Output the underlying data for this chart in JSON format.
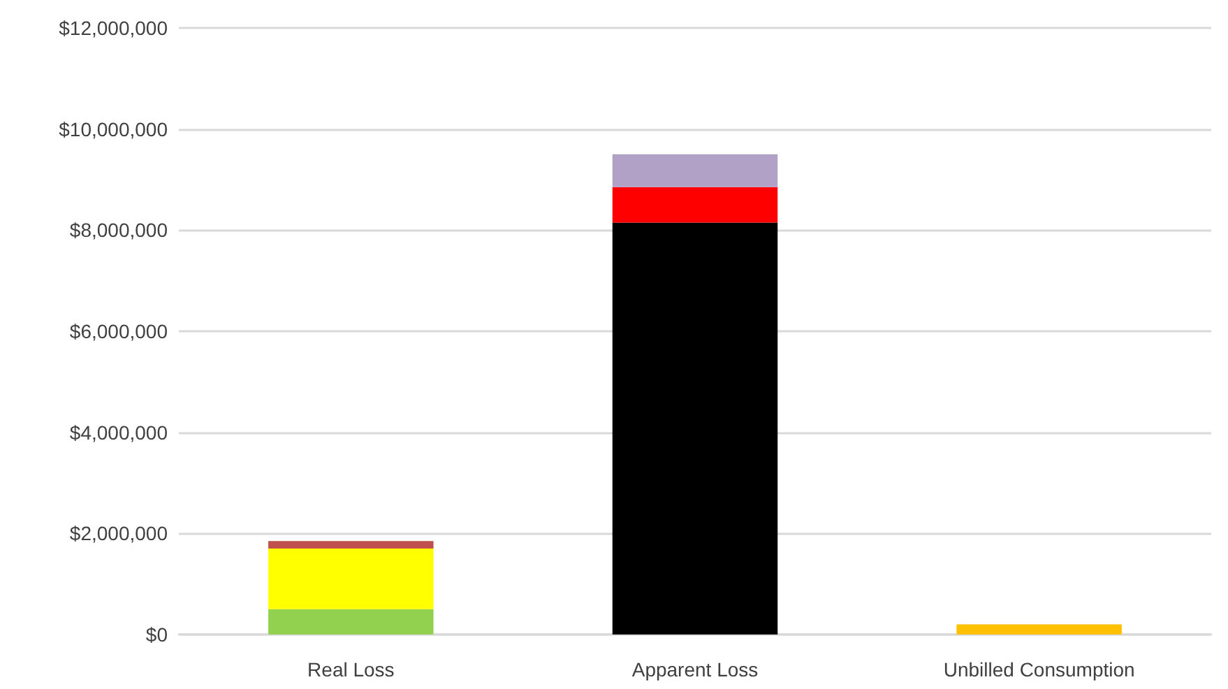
{
  "chart_data": {
    "type": "bar",
    "stacked": true,
    "categories": [
      "Real Loss",
      "Apparent Loss",
      "Unbilled Consumption"
    ],
    "series": [
      {
        "color": "#92d050",
        "values": [
          500000,
          null,
          null
        ]
      },
      {
        "color": "#ffff00",
        "values": [
          1200000,
          null,
          null
        ]
      },
      {
        "color": "#c0504d",
        "values": [
          150000,
          null,
          null
        ]
      },
      {
        "color": "#000000",
        "values": [
          null,
          8150000,
          null
        ]
      },
      {
        "color": "#ff0000",
        "values": [
          null,
          700000,
          null
        ]
      },
      {
        "color": "#b2a1c7",
        "values": [
          null,
          650000,
          null
        ]
      },
      {
        "color": "#ffc000",
        "values": [
          null,
          null,
          200000
        ]
      }
    ],
    "ylim": [
      0,
      12000000
    ],
    "yticks": [
      {
        "value": 0,
        "label": "$0"
      },
      {
        "value": 2000000,
        "label": "$2,000,000"
      },
      {
        "value": 4000000,
        "label": "$4,000,000"
      },
      {
        "value": 6000000,
        "label": "$6,000,000"
      },
      {
        "value": 8000000,
        "label": "$8,000,000"
      },
      {
        "value": 10000000,
        "label": "$10,000,000"
      },
      {
        "value": 12000000,
        "label": "$12,000,000"
      }
    ],
    "grid": "y"
  }
}
